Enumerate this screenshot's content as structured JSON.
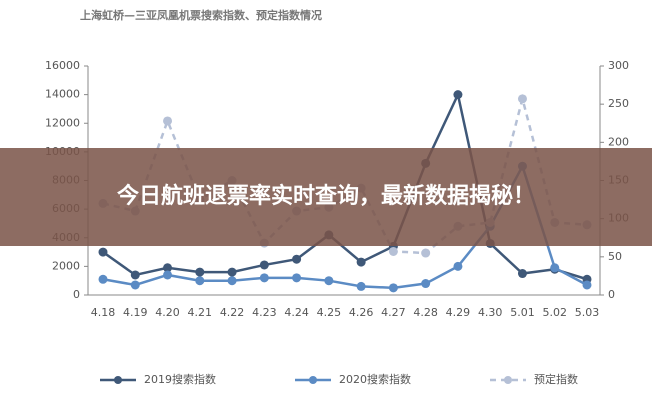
{
  "chart_data": {
    "type": "line",
    "title": "上海虹桥—三亚凤凰机票搜索指数、预定指数情况",
    "categories": [
      "4.18",
      "4.19",
      "4.20",
      "4.21",
      "4.22",
      "4.23",
      "4.24",
      "4.25",
      "4.26",
      "4.27",
      "4.28",
      "4.29",
      "4.30",
      "5.01",
      "5.02",
      "5.03"
    ],
    "series": [
      {
        "name": "2019搜索指数",
        "color": "#3f5878",
        "values": [
          3000,
          1400,
          1900,
          1600,
          1600,
          2100,
          2500,
          4200,
          2300,
          3400,
          9200,
          14000,
          3600,
          1500,
          1800,
          1100
        ]
      },
      {
        "name": "2020搜索指数",
        "color": "#5b8bc4",
        "values": [
          1100,
          700,
          1400,
          1000,
          1000,
          1200,
          1200,
          1000,
          600,
          500,
          800,
          2000,
          4800,
          9000,
          1900,
          700
        ]
      },
      {
        "name": "预定指数",
        "color": "#b5c0d6",
        "dashed": true,
        "axis": "y2",
        "values": [
          120,
          110,
          228,
          125,
          150,
          68,
          110,
          115,
          140,
          57,
          55,
          90,
          95,
          257,
          95,
          92
        ]
      }
    ],
    "ylim": [
      0,
      16000
    ],
    "yticks": [
      0,
      2000,
      4000,
      6000,
      8000,
      10000,
      12000,
      14000,
      16000
    ],
    "y2lim": [
      0,
      300
    ],
    "y2ticks": [
      0,
      50,
      100,
      150,
      200,
      250,
      300
    ],
    "legend": "bottom"
  },
  "banner": {
    "text": "今日航班退票率实时查询，最新数据揭秘！"
  }
}
